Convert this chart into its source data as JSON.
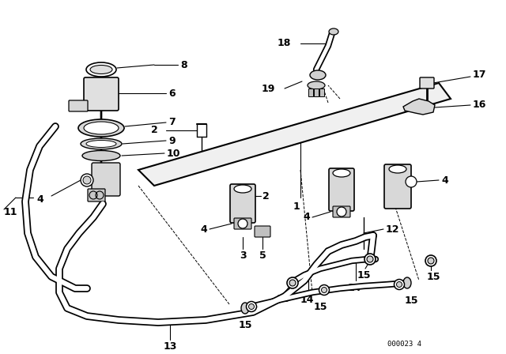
{
  "bg_color": "#ffffff",
  "line_color": "#000000",
  "diagram_code": "000023 4",
  "fig_width": 6.4,
  "fig_height": 4.48,
  "dpi": 100,
  "label_fontsize": 9,
  "label_fontsize_small": 8
}
